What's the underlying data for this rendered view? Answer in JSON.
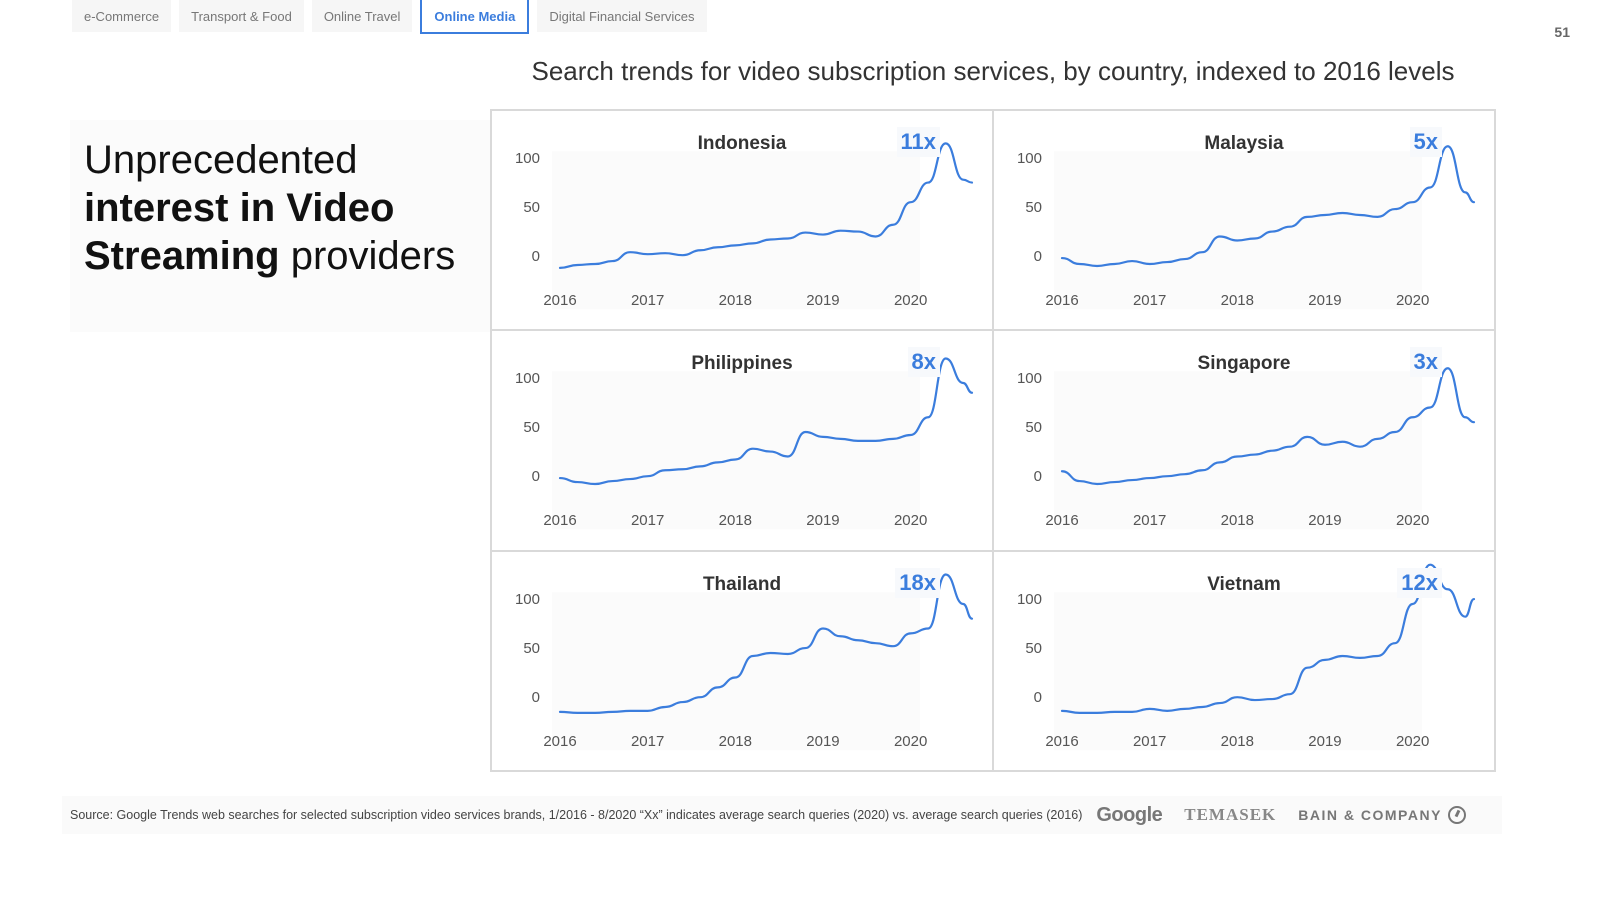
{
  "tabs": [
    {
      "label": "e-Commerce",
      "active": false
    },
    {
      "label": "Transport & Food",
      "active": false
    },
    {
      "label": "Online Travel",
      "active": false
    },
    {
      "label": "Online Media",
      "active": true
    },
    {
      "label": "Digital Financial Services",
      "active": false
    }
  ],
  "page_number": "51",
  "headline": {
    "part1": "Unprecedented",
    "part2_bold": "interest in Video Streaming",
    "part3": "providers"
  },
  "chart_title": "Search trends for video subscription services, by country, indexed to 2016 levels",
  "footer": {
    "source": "Source: Google Trends web searches for selected subscription video services brands, 1/2016 - 8/2020 “Xx” indicates average search queries (2020) vs. average search queries (2016)",
    "logos": [
      "Google",
      "TEMASEK",
      "BAIN & COMPANY"
    ]
  },
  "colors": {
    "accent": "#3b7ddd",
    "border": "#d9d9d9"
  },
  "chart_data": [
    {
      "type": "line",
      "title": "Indonesia",
      "multiplier": "11x",
      "x_ticks": [
        "2016",
        "2017",
        "2018",
        "2019",
        "2020"
      ],
      "y_ticks": [
        "100",
        "50",
        "0"
      ],
      "ylim": [
        0,
        100
      ],
      "xlim": [
        2016,
        2020.7
      ],
      "x": [
        2016.0,
        2016.2,
        2016.4,
        2016.6,
        2016.8,
        2017.0,
        2017.2,
        2017.4,
        2017.6,
        2017.8,
        2018.0,
        2018.2,
        2018.4,
        2018.6,
        2018.8,
        2019.0,
        2019.2,
        2019.4,
        2019.6,
        2019.8,
        2020.0,
        2020.2,
        2020.4,
        2020.6,
        2020.7
      ],
      "values": [
        -12,
        -9,
        -8,
        -5,
        4,
        2,
        3,
        1,
        6,
        9,
        11,
        13,
        17,
        18,
        24,
        22,
        26,
        25,
        20,
        32,
        55,
        75,
        115,
        78,
        75
      ]
    },
    {
      "type": "line",
      "title": "Malaysia",
      "multiplier": "5x",
      "x_ticks": [
        "2016",
        "2017",
        "2018",
        "2019",
        "2020"
      ],
      "y_ticks": [
        "100",
        "50",
        "0"
      ],
      "ylim": [
        0,
        100
      ],
      "xlim": [
        2016,
        2020.7
      ],
      "x": [
        2016.0,
        2016.2,
        2016.4,
        2016.6,
        2016.8,
        2017.0,
        2017.2,
        2017.4,
        2017.6,
        2017.8,
        2018.0,
        2018.2,
        2018.4,
        2018.6,
        2018.8,
        2019.0,
        2019.2,
        2019.4,
        2019.6,
        2019.8,
        2020.0,
        2020.2,
        2020.4,
        2020.6,
        2020.7
      ],
      "values": [
        -2,
        -8,
        -10,
        -8,
        -5,
        -8,
        -6,
        -3,
        4,
        20,
        16,
        18,
        25,
        30,
        40,
        42,
        44,
        42,
        40,
        48,
        55,
        70,
        112,
        65,
        55
      ]
    },
    {
      "type": "line",
      "title": "Philippines",
      "multiplier": "8x",
      "x_ticks": [
        "2016",
        "2017",
        "2018",
        "2019",
        "2020"
      ],
      "y_ticks": [
        "100",
        "50",
        "0"
      ],
      "ylim": [
        0,
        100
      ],
      "xlim": [
        2016,
        2020.7
      ],
      "x": [
        2016.0,
        2016.2,
        2016.4,
        2016.6,
        2016.8,
        2017.0,
        2017.2,
        2017.4,
        2017.6,
        2017.8,
        2018.0,
        2018.2,
        2018.4,
        2018.6,
        2018.8,
        2019.0,
        2019.2,
        2019.4,
        2019.6,
        2019.8,
        2020.0,
        2020.2,
        2020.4,
        2020.6,
        2020.7
      ],
      "values": [
        -2,
        -6,
        -8,
        -5,
        -3,
        0,
        6,
        7,
        10,
        14,
        17,
        28,
        25,
        20,
        45,
        40,
        38,
        36,
        36,
        38,
        42,
        60,
        120,
        95,
        85
      ]
    },
    {
      "type": "line",
      "title": "Singapore",
      "multiplier": "3x",
      "x_ticks": [
        "2016",
        "2017",
        "2018",
        "2019",
        "2020"
      ],
      "y_ticks": [
        "100",
        "50",
        "0"
      ],
      "ylim": [
        0,
        100
      ],
      "xlim": [
        2016,
        2020.7
      ],
      "x": [
        2016.0,
        2016.2,
        2016.4,
        2016.6,
        2016.8,
        2017.0,
        2017.2,
        2017.4,
        2017.6,
        2017.8,
        2018.0,
        2018.2,
        2018.4,
        2018.6,
        2018.8,
        2019.0,
        2019.2,
        2019.4,
        2019.6,
        2019.8,
        2020.0,
        2020.2,
        2020.4,
        2020.6,
        2020.7
      ],
      "values": [
        5,
        -5,
        -8,
        -6,
        -4,
        -2,
        0,
        2,
        6,
        14,
        20,
        22,
        26,
        30,
        40,
        32,
        35,
        30,
        38,
        45,
        60,
        70,
        110,
        60,
        55
      ]
    },
    {
      "type": "line",
      "title": "Thailand",
      "multiplier": "18x",
      "x_ticks": [
        "2016",
        "2017",
        "2018",
        "2019",
        "2020"
      ],
      "y_ticks": [
        "100",
        "50",
        "0"
      ],
      "ylim": [
        0,
        100
      ],
      "xlim": [
        2016,
        2020.7
      ],
      "x": [
        2016.0,
        2016.2,
        2016.4,
        2016.6,
        2016.8,
        2017.0,
        2017.2,
        2017.4,
        2017.6,
        2017.8,
        2018.0,
        2018.2,
        2018.4,
        2018.6,
        2018.8,
        2019.0,
        2019.2,
        2019.4,
        2019.6,
        2019.8,
        2020.0,
        2020.2,
        2020.4,
        2020.6,
        2020.7
      ],
      "values": [
        -15,
        -16,
        -16,
        -15,
        -14,
        -14,
        -10,
        -5,
        0,
        10,
        20,
        42,
        45,
        44,
        50,
        70,
        62,
        58,
        55,
        52,
        65,
        70,
        125,
        95,
        80
      ]
    },
    {
      "type": "line",
      "title": "Vietnam",
      "multiplier": "12x",
      "x_ticks": [
        "2016",
        "2017",
        "2018",
        "2019",
        "2020"
      ],
      "y_ticks": [
        "100",
        "50",
        "0"
      ],
      "ylim": [
        0,
        100
      ],
      "xlim": [
        2016,
        2020.7
      ],
      "x": [
        2016.0,
        2016.2,
        2016.4,
        2016.6,
        2016.8,
        2017.0,
        2017.2,
        2017.4,
        2017.6,
        2017.8,
        2018.0,
        2018.2,
        2018.4,
        2018.6,
        2018.8,
        2019.0,
        2019.2,
        2019.4,
        2019.6,
        2019.8,
        2020.0,
        2020.2,
        2020.4,
        2020.6,
        2020.7
      ],
      "values": [
        -14,
        -16,
        -16,
        -15,
        -15,
        -12,
        -14,
        -12,
        -10,
        -6,
        0,
        -3,
        -2,
        3,
        30,
        38,
        42,
        40,
        42,
        55,
        95,
        135,
        110,
        82,
        100
      ]
    }
  ]
}
